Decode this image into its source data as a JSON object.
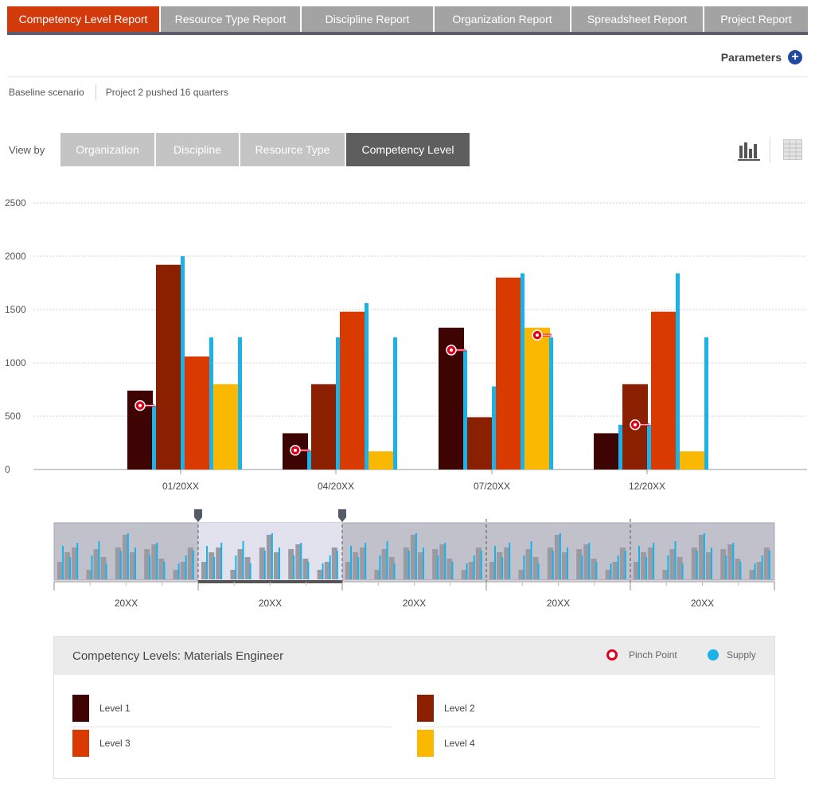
{
  "tabs": [
    {
      "label": "Competency Level Report",
      "active": true
    },
    {
      "label": "Resource Type Report",
      "active": false
    },
    {
      "label": "Discipline Report",
      "active": false
    },
    {
      "label": "Organization Report",
      "active": false
    },
    {
      "label": "Spreadsheet Report",
      "active": false
    },
    {
      "label": "Project Report",
      "active": false
    }
  ],
  "parameters": {
    "label": "Parameters",
    "icon": "plus-circle-icon"
  },
  "scenario": {
    "baseline": "Baseline scenario",
    "variant": "Project 2 pushed 16 quarters"
  },
  "view_by": {
    "label": "View by",
    "options": [
      {
        "label": "Organization",
        "active": false
      },
      {
        "label": "Discipline",
        "active": false
      },
      {
        "label": "Resource Type",
        "active": false
      },
      {
        "label": "Competency Level",
        "active": true
      }
    ]
  },
  "view_icons": [
    "bar-chart-icon",
    "table-icon"
  ],
  "colors": {
    "level1": "#3e0303",
    "level2": "#8a2000",
    "level3": "#d83a00",
    "level4": "#fbb800",
    "supply": "#1bb2ea",
    "pinch": "#e3001b",
    "accent": "#d23a0c"
  },
  "chart_data": {
    "type": "bar",
    "categories": [
      "01/20XX",
      "04/20XX",
      "07/20XX",
      "12/20XX"
    ],
    "series": [
      {
        "name": "Level 1",
        "values": [
          740,
          340,
          1330,
          340
        ]
      },
      {
        "name": "Level 2",
        "values": [
          1920,
          800,
          490,
          800
        ]
      },
      {
        "name": "Level 3",
        "values": [
          1060,
          1480,
          1800,
          1480
        ]
      },
      {
        "name": "Level 4",
        "values": [
          800,
          170,
          1330,
          170
        ]
      }
    ],
    "supply": [
      [
        600,
        2000,
        1240,
        1240
      ],
      [
        180,
        1240,
        1560,
        1240
      ],
      [
        1120,
        780,
        1840,
        1240
      ],
      [
        420,
        420,
        1840,
        1240
      ]
    ],
    "pinch_points": [
      {
        "category": "01/20XX",
        "level": "Level 1",
        "value": 600
      },
      {
        "category": "04/20XX",
        "level": "Level 1",
        "value": 180
      },
      {
        "category": "07/20XX",
        "level": "Level 1",
        "value": 1120
      },
      {
        "category": "07/20XX",
        "level": "Level 4",
        "value": 1260
      },
      {
        "category": "12/20XX",
        "level": "Level 2",
        "value": 420
      }
    ],
    "y_ticks": [
      0,
      500,
      1000,
      1500,
      2000,
      2500
    ],
    "ylim": [
      0,
      2500
    ],
    "grid": true
  },
  "timeline": {
    "labels": [
      "20XX",
      "20XX",
      "20XX",
      "20XX",
      "20XX"
    ],
    "selected_index": 1
  },
  "legend": {
    "title": "Competency Levels: Materials Engineer",
    "pinch_label": "Pinch Point",
    "supply_label": "Supply",
    "levels": [
      "Level 1",
      "Level 2",
      "Level 3",
      "Level 4"
    ]
  }
}
